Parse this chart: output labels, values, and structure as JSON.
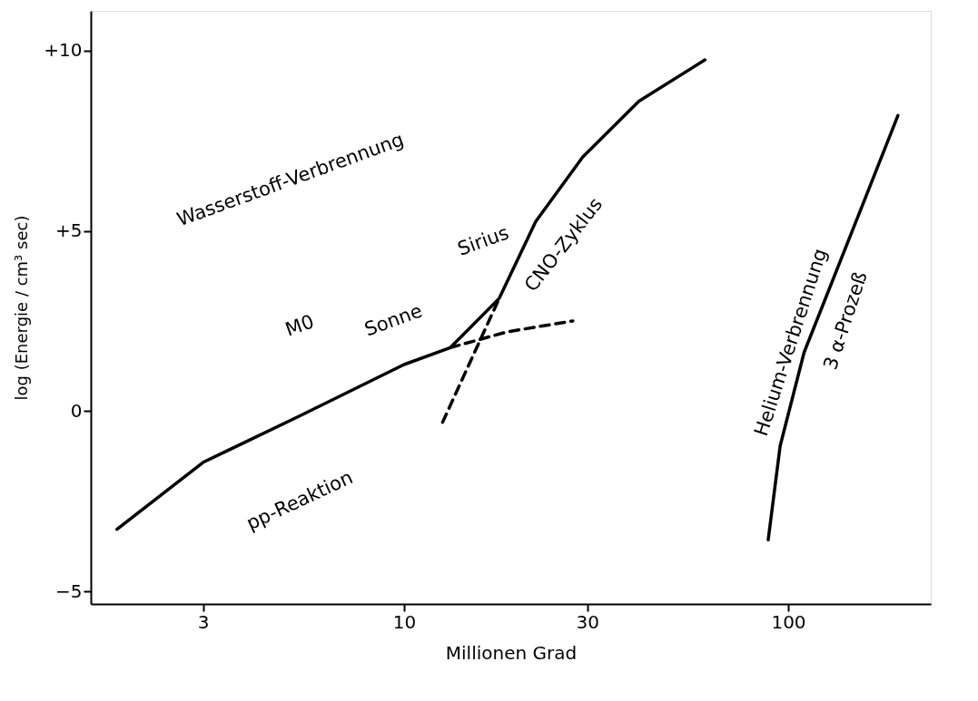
{
  "chart_data": {
    "type": "line",
    "xlabel": "Millionen Grad",
    "ylabel": "log (Energie / cm³ sec)",
    "log": "x",
    "xlim": [
      1.53,
      235
    ],
    "ylim": [
      -5.35,
      11.1
    ],
    "xticks": [
      3,
      10,
      30,
      100
    ],
    "yticks": [
      {
        "value": 10,
        "label": "+10"
      },
      {
        "value": 5,
        "label": "+5"
      },
      0,
      {
        "value": -5,
        "label": "−5"
      }
    ],
    "grid": false,
    "marker": "none",
    "series": [
      {
        "color": "#000000",
        "line_style": "solid",
        "x": [
          1.79,
          3,
          5.36,
          10,
          13.2,
          17.7,
          22.0,
          29.2,
          40.9,
          60.7
        ],
        "values": [
          -3.28,
          -1.42,
          -0.13,
          1.29,
          1.76,
          3.13,
          5.25,
          7.05,
          8.6,
          9.74
        ]
      },
      {
        "color": "#000000",
        "line_style": "dashed",
        "x": [
          13.2,
          18.6,
          27.5
        ],
        "values": [
          1.76,
          2.2,
          2.5
        ]
      },
      {
        "color": "#000000",
        "line_style": "dashed",
        "x": [
          12.6,
          17.7
        ],
        "values": [
          -0.31,
          3.13
        ]
      },
      {
        "color": "#000000",
        "line_style": "solid",
        "x": [
          88.7,
          95.3,
          110,
          150,
          193
        ],
        "values": [
          -3.57,
          -0.96,
          1.63,
          5.25,
          8.2
        ]
      }
    ],
    "annotations": [
      "Wasserstoff-Verbrennung",
      "M0",
      "Sonne",
      "Sirius",
      "CNO-Zyklus",
      "pp-Reaktion",
      "Helium-Verbrennung",
      "3 α-Prozeß"
    ]
  }
}
